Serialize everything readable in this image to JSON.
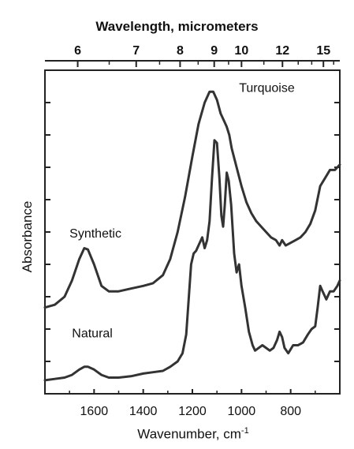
{
  "chart_data": {
    "type": "line",
    "title": "",
    "xlabel": "Wavenumber, cm",
    "xlabel_sup": "-1",
    "ylabel": "Absorbance",
    "secondary_xlabel": "Wavelength, micrometers",
    "xlim": [
      1800,
      600
    ],
    "x_reversed": true,
    "xticks": [
      1600,
      1400,
      1200,
      1000,
      800
    ],
    "secondary_xticks": [
      {
        "label": "6",
        "value": 6
      },
      {
        "label": "7",
        "value": 7
      },
      {
        "label": "8",
        "value": 8
      },
      {
        "label": "9",
        "value": 9
      },
      {
        "label": "10",
        "value": 10
      },
      {
        "label": "12",
        "value": 12
      },
      {
        "label": "15",
        "value": 15
      }
    ],
    "y_tick_labels_shown": false,
    "grid": false,
    "series": [
      {
        "name": "Synthetic",
        "annotation": "Turquoise",
        "color": "#333333",
        "points": [
          [
            1800,
            0.78
          ],
          [
            1760,
            0.77
          ],
          [
            1720,
            0.74
          ],
          [
            1690,
            0.68
          ],
          [
            1660,
            0.6
          ],
          [
            1640,
            0.56
          ],
          [
            1625,
            0.565
          ],
          [
            1600,
            0.62
          ],
          [
            1570,
            0.7
          ],
          [
            1540,
            0.72
          ],
          [
            1500,
            0.72
          ],
          [
            1450,
            0.71
          ],
          [
            1400,
            0.7
          ],
          [
            1360,
            0.69
          ],
          [
            1320,
            0.66
          ],
          [
            1290,
            0.6
          ],
          [
            1260,
            0.5
          ],
          [
            1230,
            0.37
          ],
          [
            1200,
            0.22
          ],
          [
            1175,
            0.1
          ],
          [
            1150,
            0.02
          ],
          [
            1130,
            -0.02
          ],
          [
            1115,
            -0.02
          ],
          [
            1100,
            0.01
          ],
          [
            1085,
            0.06
          ],
          [
            1070,
            0.09
          ],
          [
            1060,
            0.11
          ],
          [
            1050,
            0.14
          ],
          [
            1040,
            0.19
          ],
          [
            1020,
            0.26
          ],
          [
            1000,
            0.33
          ],
          [
            980,
            0.39
          ],
          [
            960,
            0.43
          ],
          [
            940,
            0.46
          ],
          [
            920,
            0.48
          ],
          [
            900,
            0.5
          ],
          [
            880,
            0.52
          ],
          [
            860,
            0.53
          ],
          [
            845,
            0.55
          ],
          [
            835,
            0.53
          ],
          [
            820,
            0.55
          ],
          [
            800,
            0.54
          ],
          [
            780,
            0.53
          ],
          [
            760,
            0.52
          ],
          [
            740,
            0.5
          ],
          [
            720,
            0.47
          ],
          [
            700,
            0.42
          ],
          [
            680,
            0.33
          ],
          [
            660,
            0.3
          ],
          [
            640,
            0.27
          ],
          [
            620,
            0.27
          ],
          [
            600,
            0.25
          ]
        ]
      },
      {
        "name": "Natural",
        "color": "#333333",
        "points": [
          [
            1800,
            1.05
          ],
          [
            1760,
            1.045
          ],
          [
            1720,
            1.04
          ],
          [
            1690,
            1.03
          ],
          [
            1660,
            1.01
          ],
          [
            1640,
            1.0
          ],
          [
            1625,
            1.0
          ],
          [
            1600,
            1.01
          ],
          [
            1570,
            1.03
          ],
          [
            1540,
            1.04
          ],
          [
            1500,
            1.04
          ],
          [
            1450,
            1.035
          ],
          [
            1400,
            1.025
          ],
          [
            1360,
            1.02
          ],
          [
            1320,
            1.015
          ],
          [
            1290,
            1.0
          ],
          [
            1260,
            0.98
          ],
          [
            1240,
            0.95
          ],
          [
            1225,
            0.88
          ],
          [
            1215,
            0.75
          ],
          [
            1205,
            0.62
          ],
          [
            1195,
            0.58
          ],
          [
            1185,
            0.57
          ],
          [
            1170,
            0.54
          ],
          [
            1160,
            0.52
          ],
          [
            1150,
            0.56
          ],
          [
            1140,
            0.53
          ],
          [
            1130,
            0.46
          ],
          [
            1120,
            0.3
          ],
          [
            1110,
            0.16
          ],
          [
            1100,
            0.17
          ],
          [
            1090,
            0.3
          ],
          [
            1082,
            0.44
          ],
          [
            1075,
            0.48
          ],
          [
            1068,
            0.4
          ],
          [
            1060,
            0.28
          ],
          [
            1052,
            0.31
          ],
          [
            1042,
            0.4
          ],
          [
            1030,
            0.58
          ],
          [
            1020,
            0.65
          ],
          [
            1010,
            0.62
          ],
          [
            1000,
            0.7
          ],
          [
            985,
            0.78
          ],
          [
            970,
            0.87
          ],
          [
            955,
            0.92
          ],
          [
            945,
            0.94
          ],
          [
            930,
            0.93
          ],
          [
            915,
            0.92
          ],
          [
            900,
            0.93
          ],
          [
            885,
            0.94
          ],
          [
            870,
            0.93
          ],
          [
            855,
            0.9
          ],
          [
            845,
            0.87
          ],
          [
            835,
            0.89
          ],
          [
            825,
            0.93
          ],
          [
            810,
            0.95
          ],
          [
            790,
            0.92
          ],
          [
            770,
            0.92
          ],
          [
            750,
            0.91
          ],
          [
            730,
            0.88
          ],
          [
            715,
            0.86
          ],
          [
            700,
            0.85
          ],
          [
            690,
            0.78
          ],
          [
            680,
            0.7
          ],
          [
            670,
            0.72
          ],
          [
            655,
            0.75
          ],
          [
            640,
            0.72
          ],
          [
            625,
            0.72
          ],
          [
            610,
            0.7
          ],
          [
            600,
            0.68
          ]
        ]
      }
    ],
    "labels": [
      {
        "text": "Turquoise",
        "x": 1010,
        "y": -0.02
      },
      {
        "text": "Synthetic",
        "x": 1700,
        "y": 0.52
      },
      {
        "text": "Natural",
        "x": 1690,
        "y": 0.89
      }
    ]
  }
}
